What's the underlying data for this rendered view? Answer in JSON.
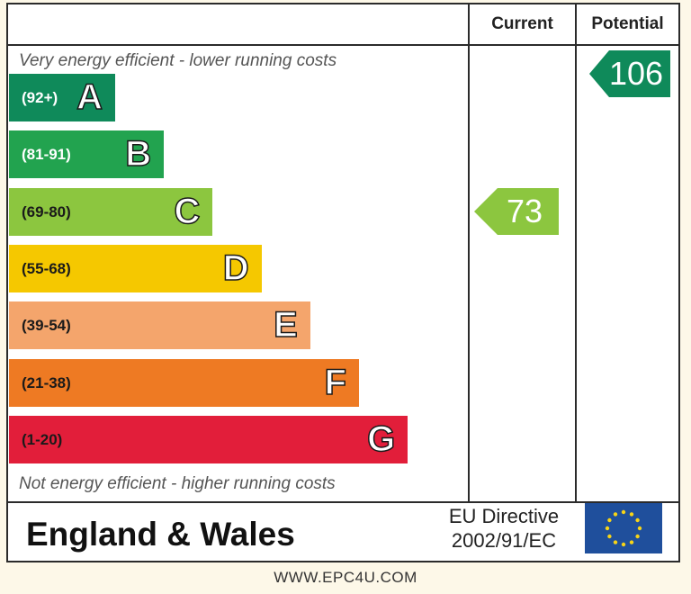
{
  "header": {
    "current_label": "Current",
    "potential_label": "Potential"
  },
  "captions": {
    "top": "Very energy efficient - lower running costs",
    "bottom": "Not energy efficient - higher running costs"
  },
  "chart_data": {
    "type": "bar",
    "categories": [
      "A",
      "B",
      "C",
      "D",
      "E",
      "F",
      "G"
    ],
    "ranges": [
      "(92+)",
      "(81-91)",
      "(69-80)",
      "(55-68)",
      "(39-54)",
      "(21-38)",
      "(1-20)"
    ],
    "colors": [
      "#0f8a5a",
      "#22a34f",
      "#8cc63f",
      "#f5c800",
      "#f4a56c",
      "#ee7a23",
      "#e21e3a"
    ],
    "range_text_colors": [
      "#ffffff",
      "#ffffff",
      "#1a1a1a",
      "#1a1a1a",
      "#1a1a1a",
      "#1a1a1a",
      "#1a1a1a"
    ],
    "bar_widths": [
      1,
      2,
      3,
      4,
      5,
      6,
      7
    ],
    "current": {
      "value": 73,
      "band": "C",
      "color": "#8cc63f"
    },
    "potential": {
      "value": 106,
      "band": "A",
      "color": "#0f8a5a"
    }
  },
  "footer": {
    "title": "England & Wales",
    "directive_line1": "EU Directive",
    "directive_line2": "2002/91/EC",
    "flag_icon": "eu-flag-icon"
  },
  "watermark": "WWW.EPC4U.COM"
}
